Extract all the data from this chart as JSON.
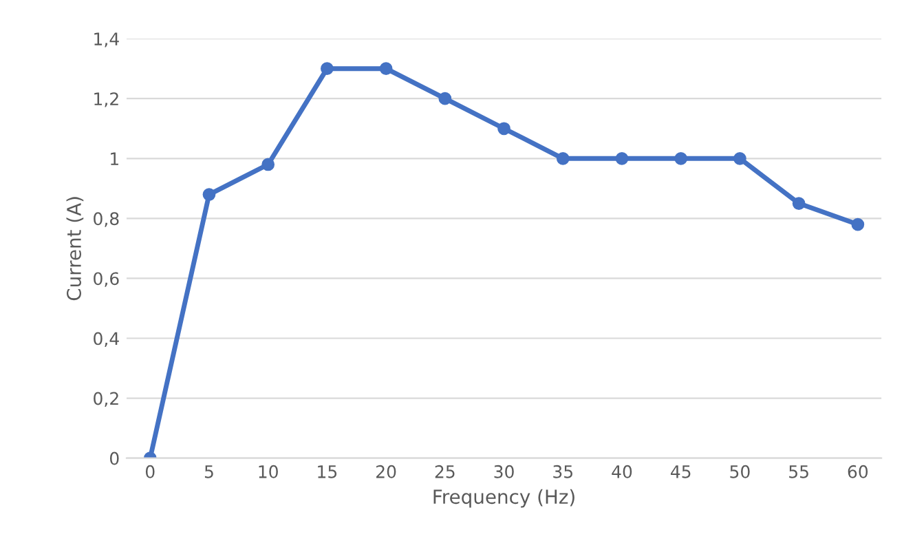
{
  "chart_data": {
    "type": "line",
    "xlabel": "Frequency (Hz)",
    "ylabel": "Current (A)",
    "categories": [
      "0",
      "5",
      "10",
      "15",
      "20",
      "25",
      "30",
      "35",
      "40",
      "45",
      "50",
      "55",
      "60"
    ],
    "series": [
      {
        "color": "#4472c4",
        "values": [
          0,
          0.88,
          0.98,
          1.3,
          1.3,
          1.2,
          1.1,
          1.0,
          1.0,
          1.0,
          1.0,
          0.85,
          0.78
        ]
      }
    ],
    "ylim": [
      0,
      1.4
    ],
    "yticks": [
      0,
      {
        "value": 0.2,
        "label": "0,2"
      },
      {
        "value": 0.4,
        "label": "0,4"
      },
      {
        "value": 0.6,
        "label": "0,6"
      },
      {
        "value": 0.8,
        "label": "0,8"
      },
      1,
      {
        "value": 1.2,
        "label": "1,2"
      },
      {
        "value": 1.4,
        "label": "1,4"
      }
    ],
    "grid": "y",
    "marker": "circle",
    "line_style": "solid"
  }
}
